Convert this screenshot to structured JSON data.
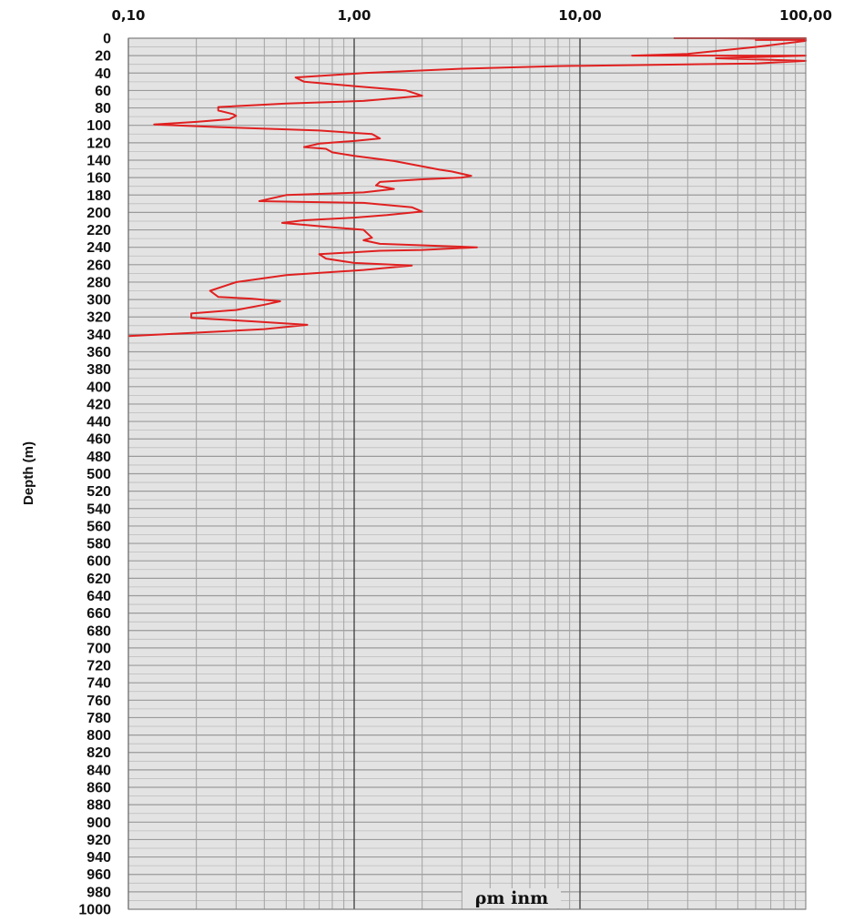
{
  "chart_data": {
    "type": "line",
    "xscale": "log",
    "xlim": [
      0.1,
      100
    ],
    "ylim": [
      0,
      1000
    ],
    "y_inverted": true,
    "xticks": [
      "0,10",
      "1,00",
      "10,00",
      "100,00"
    ],
    "ylabel": "Depth (m)",
    "xlabel": "ρm inm",
    "grid": true,
    "line_color": "#e02020",
    "series": [
      {
        "points": [
          [
            26,
            0
          ],
          [
            45,
            0
          ],
          [
            100,
            0
          ],
          [
            42,
            0
          ],
          [
            100,
            1
          ],
          [
            60,
            2
          ],
          [
            100,
            2
          ],
          [
            100,
            3
          ],
          [
            60,
            10
          ],
          [
            30,
            18
          ],
          [
            17,
            20
          ],
          [
            50,
            20
          ],
          [
            100,
            20
          ],
          [
            40,
            23
          ],
          [
            100,
            26
          ],
          [
            60,
            29
          ],
          [
            8,
            32
          ],
          [
            3,
            35
          ],
          [
            1.1,
            40
          ],
          [
            0.55,
            45
          ],
          [
            0.6,
            50
          ],
          [
            1.0,
            55
          ],
          [
            1.7,
            60
          ],
          [
            2.0,
            66
          ],
          [
            1.1,
            72
          ],
          [
            0.5,
            75
          ],
          [
            0.25,
            79
          ],
          [
            0.25,
            83
          ],
          [
            0.29,
            87
          ],
          [
            0.3,
            89
          ],
          [
            0.28,
            93
          ],
          [
            0.2,
            96
          ],
          [
            0.13,
            99
          ],
          [
            0.25,
            102
          ],
          [
            0.7,
            106
          ],
          [
            1.2,
            110
          ],
          [
            1.3,
            115
          ],
          [
            1.0,
            118
          ],
          [
            0.7,
            121
          ],
          [
            0.6,
            125
          ],
          [
            0.75,
            127
          ],
          [
            0.8,
            131
          ],
          [
            1.0,
            135
          ],
          [
            1.5,
            141
          ],
          [
            2.4,
            151
          ],
          [
            2.7,
            153
          ],
          [
            3.3,
            158
          ],
          [
            3.0,
            160
          ],
          [
            2.0,
            162
          ],
          [
            1.3,
            165
          ],
          [
            1.25,
            169
          ],
          [
            1.5,
            173
          ],
          [
            1.1,
            177
          ],
          [
            0.5,
            180
          ],
          [
            0.38,
            187
          ],
          [
            0.6,
            188
          ],
          [
            1.1,
            189
          ],
          [
            1.8,
            194
          ],
          [
            2.0,
            199
          ],
          [
            1.4,
            203
          ],
          [
            1.0,
            206
          ],
          [
            0.6,
            209
          ],
          [
            0.48,
            212
          ],
          [
            0.8,
            217
          ],
          [
            1.1,
            220
          ],
          [
            1.2,
            229
          ],
          [
            1.1,
            232
          ],
          [
            1.3,
            236
          ],
          [
            3.5,
            240
          ],
          [
            2.0,
            243
          ],
          [
            1.3,
            244
          ],
          [
            0.7,
            248
          ],
          [
            0.75,
            253
          ],
          [
            1.0,
            258
          ],
          [
            1.8,
            261
          ],
          [
            1.1,
            266
          ],
          [
            0.5,
            272
          ],
          [
            0.3,
            280
          ],
          [
            0.23,
            290
          ],
          [
            0.25,
            297
          ],
          [
            0.35,
            299
          ],
          [
            0.47,
            302
          ],
          [
            0.4,
            306
          ],
          [
            0.3,
            312
          ],
          [
            0.19,
            316
          ],
          [
            0.19,
            321
          ],
          [
            0.35,
            325
          ],
          [
            0.62,
            329
          ],
          [
            0.4,
            334
          ],
          [
            0.2,
            338
          ],
          [
            0.1,
            342
          ]
        ]
      }
    ]
  }
}
